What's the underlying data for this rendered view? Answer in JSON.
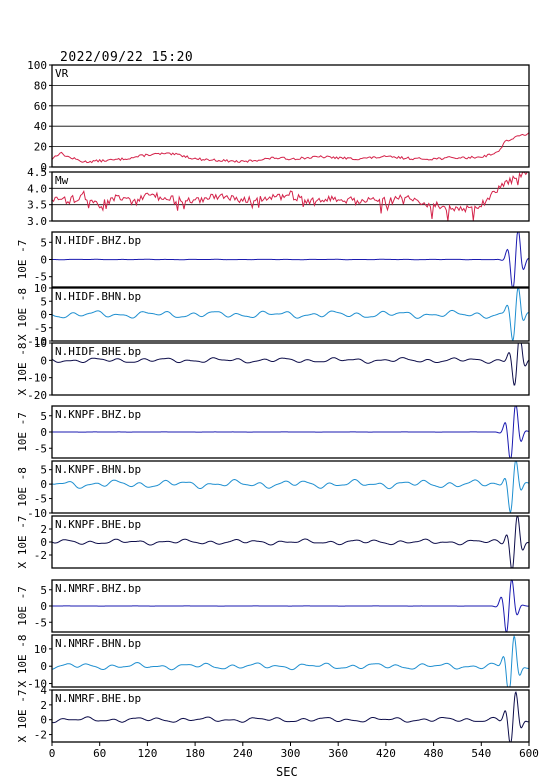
{
  "header": {
    "timestamp": "2022/09/22 15:20"
  },
  "chart_data": {
    "type": "line",
    "xlabel": "SEC",
    "xlim": [
      0,
      600
    ],
    "xticks": [
      0,
      60,
      120,
      180,
      240,
      300,
      360,
      420,
      480,
      540,
      600
    ],
    "colors": {
      "vr_mw": "#d4234a",
      "bhz": "#1a1ab0",
      "bhn": "#1f8fd0",
      "bhe": "#0d0d4a"
    },
    "panels": [
      {
        "label": "VR",
        "ylabel": "",
        "kind": "vr",
        "ylim": [
          0,
          100
        ],
        "yticks": [
          0,
          20,
          40,
          60,
          80,
          100
        ],
        "grid": true,
        "color": "#d4234a",
        "x": [
          0,
          10,
          20,
          40,
          60,
          80,
          100,
          120,
          140,
          160,
          180,
          200,
          220,
          240,
          260,
          280,
          300,
          320,
          340,
          360,
          380,
          400,
          420,
          440,
          460,
          480,
          500,
          520,
          540,
          560,
          570,
          580,
          590,
          600
        ],
        "values": [
          8,
          14,
          10,
          5,
          6,
          7,
          9,
          12,
          13,
          12,
          8,
          7,
          6,
          5,
          7,
          9,
          8,
          9,
          10,
          9,
          8,
          9,
          10,
          9,
          8,
          8,
          9,
          9,
          10,
          14,
          25,
          28,
          31,
          33
        ]
      },
      {
        "label": "Mw",
        "ylabel": "",
        "kind": "mw",
        "ylim": [
          3.0,
          4.5
        ],
        "yticks": [
          3.0,
          3.5,
          4.0,
          4.5
        ],
        "grid": true,
        "color": "#d4234a",
        "x": [
          0,
          20,
          40,
          60,
          80,
          100,
          120,
          140,
          160,
          180,
          200,
          220,
          240,
          260,
          280,
          300,
          320,
          340,
          360,
          380,
          400,
          420,
          440,
          460,
          480,
          500,
          520,
          540,
          560,
          580,
          600
        ],
        "values": [
          3.7,
          3.6,
          3.8,
          3.5,
          3.7,
          3.6,
          3.8,
          3.7,
          3.7,
          3.6,
          3.8,
          3.7,
          3.6,
          3.7,
          3.7,
          3.8,
          3.6,
          3.6,
          3.7,
          3.6,
          3.7,
          3.6,
          3.7,
          3.6,
          3.5,
          3.4,
          3.4,
          3.5,
          4.0,
          4.3,
          4.5
        ]
      },
      {
        "label": "N.HIDF.BHZ.bp",
        "ylabel": "10E -7",
        "kind": "wave",
        "ylim": [
          -8,
          8
        ],
        "yticks": [
          5,
          0,
          -5
        ],
        "color": "#1a1ab0",
        "noise": 0.05,
        "ev_t": 583,
        "ev_amp": 7.5
      },
      {
        "label": "N.HIDF.BHN.bp",
        "ylabel": "X 10E -8",
        "kind": "wave",
        "ylim": [
          -10,
          10
        ],
        "yticks": [
          10,
          5,
          0,
          -5,
          -10
        ],
        "color": "#1f8fd0",
        "noise": 1.2,
        "ev_t": 583,
        "ev_amp": 8
      },
      {
        "label": "N.HIDF.BHE.bp",
        "ylabel": "X 10E -8",
        "kind": "wave",
        "ylim": [
          -20,
          10
        ],
        "yticks": [
          10,
          0,
          -10,
          -20
        ],
        "color": "#0d0d4a",
        "noise": 1.3,
        "ev_t": 585,
        "ev_amp": 12
      },
      {
        "label": "N.KNPF.BHZ.bp",
        "ylabel": "10E -7",
        "kind": "wave",
        "ylim": [
          -8,
          8
        ],
        "yticks": [
          5,
          0,
          -5
        ],
        "color": "#1a1ab0",
        "noise": 0.02,
        "ev_t": 580,
        "ev_amp": 7.5
      },
      {
        "label": "N.KNPF.BHN.bp",
        "ylabel": "10E -8",
        "kind": "wave",
        "ylim": [
          -10,
          8
        ],
        "yticks": [
          5,
          0,
          -5,
          -10
        ],
        "color": "#1f8fd0",
        "noise": 1.2,
        "ev_t": 580,
        "ev_amp": 7
      },
      {
        "label": "N.KNPF.BHE.bp",
        "ylabel": "X 10E -7",
        "kind": "wave",
        "ylim": [
          -4,
          4
        ],
        "yticks": [
          2,
          0,
          -2
        ],
        "color": "#0d0d4a",
        "noise": 0.35,
        "ev_t": 582,
        "ev_amp": 3.5
      },
      {
        "label": "N.NMRF.BHZ.bp",
        "ylabel": "10E -7",
        "kind": "wave",
        "ylim": [
          -8,
          8
        ],
        "yticks": [
          5,
          0,
          -5
        ],
        "color": "#1a1ab0",
        "noise": 0.02,
        "ev_t": 575,
        "ev_amp": 7
      },
      {
        "label": "N.NMRF.BHN.bp",
        "ylabel": "X 10E -8",
        "kind": "wave",
        "ylim": [
          -12,
          18
        ],
        "yticks": [
          10,
          0,
          -10
        ],
        "color": "#1f8fd0",
        "noise": 1.6,
        "ev_t": 578,
        "ev_amp": 14
      },
      {
        "label": "N.NMRF.BHE.bp",
        "ylabel": "X 10E -7",
        "kind": "wave",
        "ylim": [
          -3,
          4
        ],
        "yticks": [
          4,
          2,
          0,
          -2
        ],
        "color": "#0d0d4a",
        "noise": 0.3,
        "ev_t": 580,
        "ev_amp": 3
      }
    ]
  }
}
